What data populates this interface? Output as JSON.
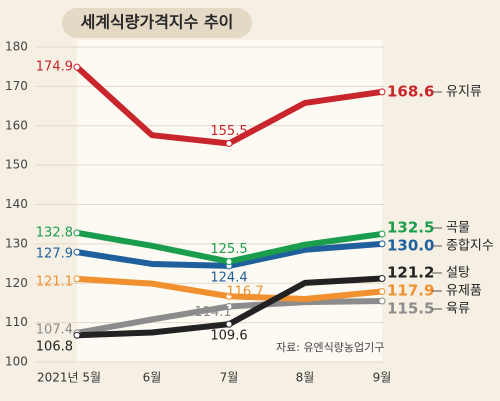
{
  "chart_data": {
    "type": "line",
    "title": "세계식량가격지수 추이",
    "source": "자료: 유엔식량농업기구",
    "categories": [
      "2021년 5월",
      "6월",
      "7월",
      "8월",
      "9월"
    ],
    "ylim": [
      100,
      180
    ],
    "yticks": [
      100,
      110,
      120,
      130,
      140,
      150,
      160,
      170,
      180
    ],
    "grid": true,
    "series": [
      {
        "name": "유지류",
        "color": "#c8252c",
        "values": [
          174.9,
          157.6,
          155.5,
          165.8,
          168.6
        ],
        "value_labels": [
          "174.9",
          null,
          "155.5",
          null,
          "168.6"
        ]
      },
      {
        "name": "곡물",
        "color": "#1a9e4e",
        "values": [
          132.8,
          129.5,
          125.5,
          129.8,
          132.5
        ],
        "value_labels": [
          "132.8",
          null,
          "125.5",
          null,
          "132.5"
        ]
      },
      {
        "name": "종합지수",
        "color": "#1f5f9c",
        "values": [
          127.9,
          124.9,
          124.4,
          128.5,
          130.0
        ],
        "value_labels": [
          "127.9",
          null,
          "124.4",
          null,
          "130.0"
        ]
      },
      {
        "name": "설탕",
        "color": "#222222",
        "values": [
          106.8,
          107.5,
          109.6,
          120.1,
          121.2
        ],
        "value_labels": [
          "106.8",
          null,
          "109.6",
          null,
          "121.2"
        ]
      },
      {
        "name": "유제품",
        "color": "#f0902e",
        "values": [
          121.1,
          119.9,
          116.7,
          116.0,
          117.9
        ],
        "value_labels": [
          "121.1",
          null,
          "116.7",
          null,
          "117.9"
        ]
      },
      {
        "name": "육류",
        "color": "#8c8c8c",
        "values": [
          107.4,
          110.8,
          114.1,
          115.2,
          115.5
        ],
        "value_labels": [
          "107.4",
          null,
          "114.1",
          null,
          "115.5"
        ]
      }
    ]
  }
}
